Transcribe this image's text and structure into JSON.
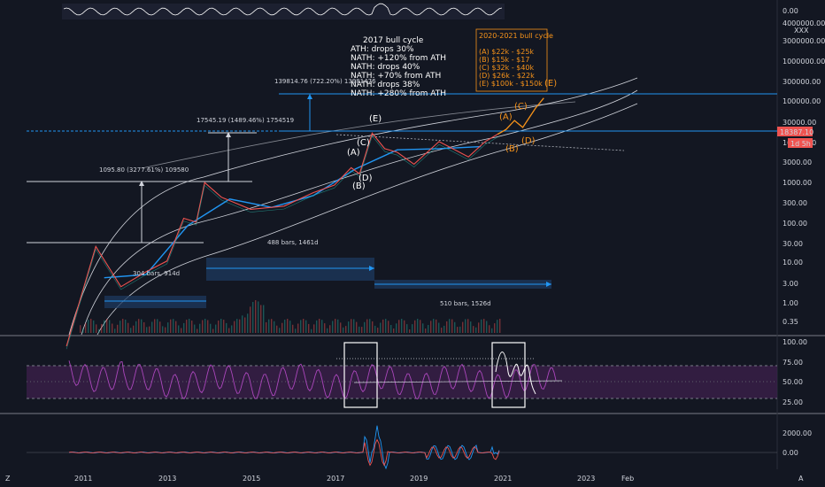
{
  "chart_data": {
    "type": "line",
    "scale": "log",
    "x_ticks": [
      "2011",
      "2013",
      "2015",
      "2017",
      "2019",
      "2021",
      "2023",
      "Feb"
    ],
    "y_ticks": [
      "4000000.00",
      "3000000.00",
      "1000000.00",
      "300000.00",
      "100000.00",
      "30000.00",
      "10000.00",
      "3000.00",
      "1000.00",
      "300.00",
      "100.00",
      "30.00",
      "10.00",
      "3.00",
      "1.00",
      "0.35"
    ],
    "y_top_label": "0.00",
    "currency_tag": "XXX",
    "price_badge": "18387.10",
    "price_badge_time": "1d 5h",
    "price_series": [
      {
        "year": 2010.6,
        "value": 0.1
      },
      {
        "year": 2011.3,
        "value": 30
      },
      {
        "year": 2011.9,
        "value": 3
      },
      {
        "year": 2012.5,
        "value": 7
      },
      {
        "year": 2013.0,
        "value": 13
      },
      {
        "year": 2013.4,
        "value": 150
      },
      {
        "year": 2013.7,
        "value": 120
      },
      {
        "year": 2013.9,
        "value": 1150
      },
      {
        "year": 2014.3,
        "value": 500
      },
      {
        "year": 2015.0,
        "value": 250
      },
      {
        "year": 2015.8,
        "value": 300
      },
      {
        "year": 2016.5,
        "value": 650
      },
      {
        "year": 2017.0,
        "value": 1000
      },
      {
        "year": 2017.4,
        "value": 2700
      },
      {
        "year": 2017.6,
        "value": 1900
      },
      {
        "year": 2017.9,
        "value": 19500
      },
      {
        "year": 2018.2,
        "value": 8000
      },
      {
        "year": 2018.5,
        "value": 6500
      },
      {
        "year": 2018.9,
        "value": 3300
      },
      {
        "year": 2019.5,
        "value": 12000
      },
      {
        "year": 2020.2,
        "value": 5000
      },
      {
        "year": 2020.6,
        "value": 12000
      },
      {
        "year": 2020.9,
        "value": 18387
      }
    ],
    "ma_series": [
      {
        "year": 2011.5,
        "value": 5
      },
      {
        "year": 2012.5,
        "value": 6
      },
      {
        "year": 2013.5,
        "value": 100
      },
      {
        "year": 2014.5,
        "value": 450
      },
      {
        "year": 2015.5,
        "value": 280
      },
      {
        "year": 2016.5,
        "value": 550
      },
      {
        "year": 2017.5,
        "value": 2500
      },
      {
        "year": 2018.5,
        "value": 7500
      },
      {
        "year": 2019.5,
        "value": 8000
      },
      {
        "year": 2020.5,
        "value": 9000
      }
    ],
    "projection_series": [
      {
        "year": 2020.9,
        "value": 18387
      },
      {
        "year": 2021.1,
        "value": 24000
      },
      {
        "year": 2021.3,
        "value": 40000
      },
      {
        "year": 2021.5,
        "value": 27000
      },
      {
        "year": 2021.8,
        "value": 80000
      },
      {
        "year": 2022.0,
        "value": 145000
      }
    ],
    "rsi_ticks": [
      "100.00",
      "75.00",
      "50.00",
      "25.00"
    ],
    "osc_ticks": [
      "2000.00",
      "0.00"
    ]
  },
  "annotations": {
    "bull2017": {
      "title": "2017 bull cycle",
      "lines": [
        "ATH: drops 30%",
        "NATH: +120% from ATH",
        "NATH: drops 40%",
        "NATH: +70% from ATH",
        "NATH: drops 38%",
        "NATH: +280% from ATH"
      ]
    },
    "bull2020": {
      "title": "2020-2021 bull cycle",
      "lines": [
        "(A) $22k - $25k",
        "(B) $15k - $17",
        "(C) $32k - $40k",
        "(D) $26k - $22k",
        "(E) $100k - $150k"
      ]
    },
    "measures": {
      "m1": "1095.80 (3277.61%) 109580",
      "m2": "17545.19 (1489.46%) 1754519",
      "m3": "139814.76 (722.20%) 13981476"
    },
    "bars": {
      "b1": "304 bars, 914d",
      "b2": "488 bars, 1461d",
      "b3": "510 bars, 1526d"
    },
    "waves_2017": [
      "(A)",
      "(B)",
      "(C)",
      "(D)",
      "(E)"
    ],
    "waves_2021": [
      "(A)",
      "(B)",
      "(C)",
      "(D)",
      "(E)"
    ]
  },
  "corner": {
    "left_icon": "Z",
    "right_icon": "A"
  },
  "colors": {
    "background": "#131722",
    "price": "#ef5350",
    "ma": "#2196f3",
    "projection": "#f7931a",
    "rsi": "#ab47bc",
    "grid": "#2a2e39"
  }
}
